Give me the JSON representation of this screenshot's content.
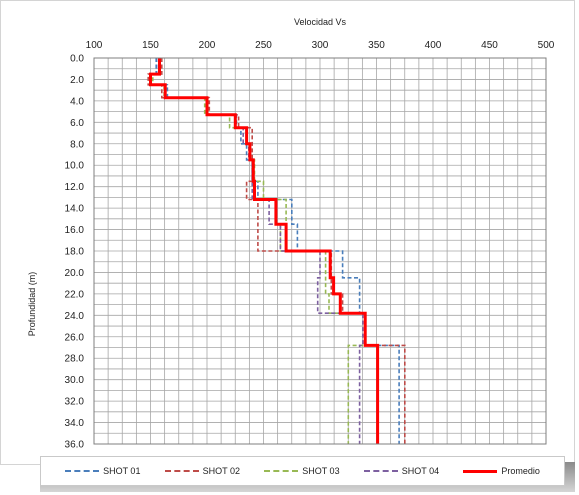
{
  "chart_data": {
    "type": "line",
    "title": "Velocidad Vs",
    "xlabel": "",
    "ylabel": "Profundidad (m)",
    "xlim": [
      100,
      500
    ],
    "ylim": [
      0,
      36
    ],
    "x_ticks": [
      "100",
      "150",
      "200",
      "250",
      "300",
      "350",
      "400",
      "450",
      "500"
    ],
    "y_ticks": [
      "0.0",
      "2.0",
      "4.0",
      "6.0",
      "8.0",
      "10.0",
      "12.0",
      "14.0",
      "16.0",
      "18.0",
      "20.0",
      "22.0",
      "24.0",
      "26.0",
      "28.0",
      "30.0",
      "32.0",
      "34.0",
      "36.0"
    ],
    "x_axis_position": "top",
    "y_axis_inverted": true,
    "grid": true,
    "legend_position": "bottom",
    "series": [
      {
        "name": "SHOT 01",
        "color": "#4a7ebb",
        "dash": "dashed",
        "depths": [
          0,
          1.5,
          2.5,
          3.7,
          5.3,
          6.5,
          8.0,
          9.5,
          11.5,
          13.2,
          15.5,
          18.0,
          20.5,
          22.0,
          23.8,
          26.8,
          36
        ],
        "values": [
          155,
          150,
          165,
          200,
          225,
          230,
          235,
          240,
          245,
          275,
          280,
          320,
          335,
          335,
          340,
          370,
          370
        ]
      },
      {
        "name": "SHOT 02",
        "color": "#be4b48",
        "dash": "dashed",
        "depths": [
          0,
          1.5,
          2.5,
          3.7,
          5.3,
          6.5,
          8.0,
          9.5,
          11.5,
          13.2,
          15.5,
          18.0,
          20.5,
          22.0,
          23.8,
          26.8,
          36
        ],
        "values": [
          160,
          148,
          160,
          202,
          228,
          240,
          240,
          240,
          235,
          245,
          245,
          310,
          310,
          320,
          340,
          375,
          375
        ]
      },
      {
        "name": "SHOT 03",
        "color": "#98b954",
        "dash": "dashed",
        "depths": [
          0,
          1.5,
          2.5,
          3.7,
          5.3,
          6.5,
          8.0,
          9.5,
          11.5,
          13.2,
          15.5,
          18.0,
          20.5,
          22.0,
          23.8,
          26.8,
          36
        ],
        "values": [
          158,
          152,
          162,
          198,
          220,
          235,
          238,
          242,
          250,
          270,
          265,
          305,
          305,
          308,
          340,
          325,
          325
        ]
      },
      {
        "name": "SHOT 04",
        "color": "#7d60a0",
        "dash": "dashed",
        "depths": [
          0,
          1.5,
          2.5,
          3.7,
          5.3,
          6.5,
          8.0,
          9.5,
          11.5,
          13.2,
          15.5,
          18.0,
          20.5,
          22.0,
          23.8,
          26.8,
          36
        ],
        "values": [
          157,
          150,
          163,
          200,
          226,
          232,
          237,
          240,
          240,
          255,
          265,
          300,
          298,
          298,
          338,
          335,
          335
        ]
      },
      {
        "name": "Promedio",
        "color": "#ff0000",
        "dash": "solid",
        "depths": [
          0,
          1.5,
          2.5,
          3.7,
          5.3,
          6.5,
          8.0,
          9.5,
          11.5,
          13.2,
          15.5,
          18.0,
          20.5,
          22.0,
          23.8,
          26.8,
          36
        ],
        "values": [
          158,
          150,
          163,
          200,
          225,
          235,
          238,
          241,
          242,
          261,
          270,
          309,
          312,
          318,
          340,
          351,
          351
        ]
      }
    ]
  }
}
